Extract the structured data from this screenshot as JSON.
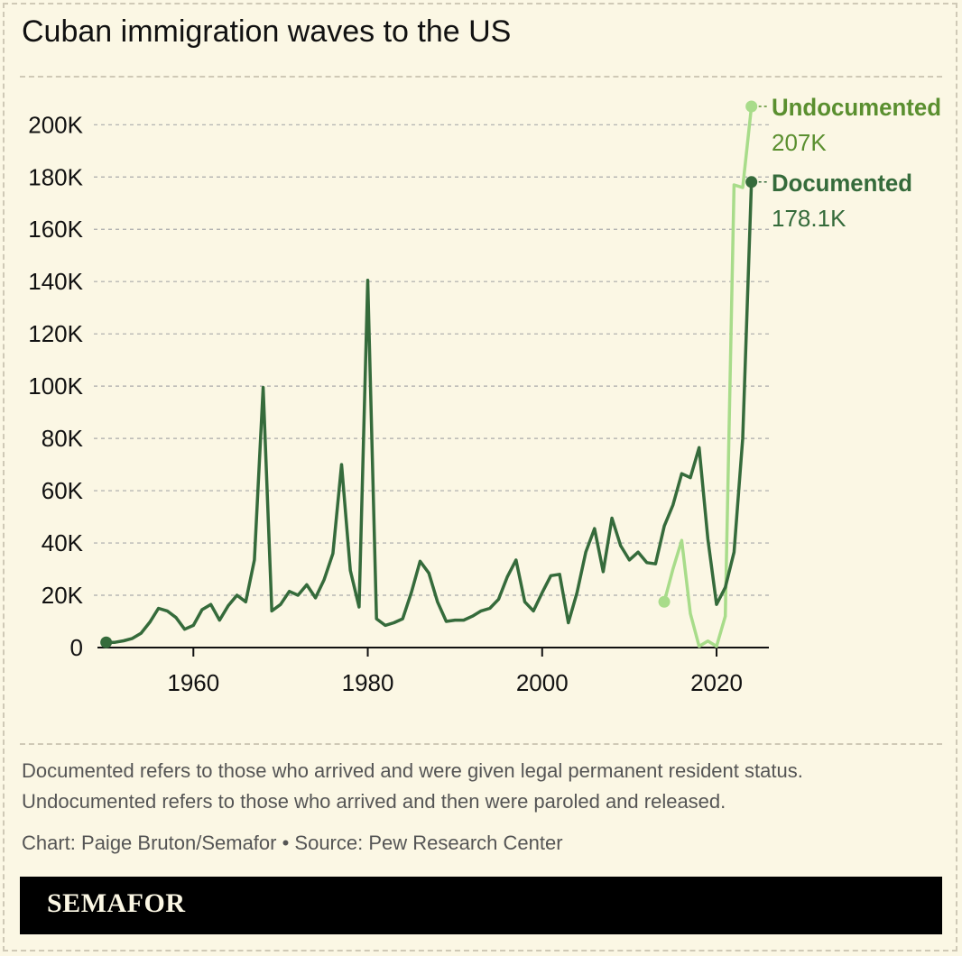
{
  "title": "Cuban immigration waves to the US",
  "notes": {
    "line1": "Documented refers to those who arrived and were given legal permanent resident status.",
    "line2": "Undocumented refers to those who arrived and then were paroled and released.",
    "credit": "Chart: Paige Bruton/Semafor • Source: Pew Research Center"
  },
  "brand": "SEMAFOR",
  "colors": {
    "background": "#fbf7e4",
    "documented": "#356b3b",
    "undocumented": "#a8dc8a",
    "undocumented_label": "#5a8f2f",
    "grid": "#aaaaaa"
  },
  "chart_data": {
    "type": "line",
    "title": "Cuban immigration waves to the US",
    "xlabel": "",
    "ylabel": "",
    "xlim": [
      1949,
      2026
    ],
    "ylim": [
      0,
      207000
    ],
    "x_ticks": [
      1960,
      1980,
      2000,
      2020
    ],
    "x_tick_labels": [
      "1960",
      "1980",
      "2000",
      "2020"
    ],
    "y_ticks": [
      0,
      20000,
      40000,
      60000,
      80000,
      100000,
      120000,
      140000,
      160000,
      180000,
      200000
    ],
    "y_tick_labels": [
      "0",
      "20K",
      "40K",
      "60K",
      "80K",
      "100K",
      "120K",
      "140K",
      "160K",
      "180K",
      "200K"
    ],
    "grid": "horizontal dashed",
    "legend": "direct labels at line ends",
    "series": [
      {
        "name": "Undocumented",
        "end_label": "207K",
        "color": "#a8dc8a",
        "x": [
          2014,
          2015,
          2016,
          2017,
          2018,
          2019,
          2020,
          2021,
          2022,
          2023,
          2024
        ],
        "y": [
          17500,
          30000,
          41000,
          13000,
          500,
          2500,
          500,
          12000,
          177000,
          176000,
          207000
        ]
      },
      {
        "name": "Documented",
        "end_label": "178.1K",
        "color": "#356b3b",
        "x": [
          1950,
          1951,
          1952,
          1953,
          1954,
          1955,
          1956,
          1957,
          1958,
          1959,
          1960,
          1961,
          1962,
          1963,
          1964,
          1965,
          1966,
          1967,
          1968,
          1969,
          1970,
          1971,
          1972,
          1973,
          1974,
          1975,
          1976,
          1977,
          1978,
          1979,
          1980,
          1981,
          1982,
          1983,
          1984,
          1985,
          1986,
          1987,
          1988,
          1989,
          1990,
          1991,
          1992,
          1993,
          1994,
          1995,
          1996,
          1997,
          1998,
          1999,
          2000,
          2001,
          2002,
          2003,
          2004,
          2005,
          2006,
          2007,
          2008,
          2009,
          2010,
          2011,
          2012,
          2013,
          2014,
          2015,
          2016,
          2017,
          2018,
          2019,
          2020,
          2021,
          2022,
          2023,
          2024
        ],
        "y": [
          2000,
          2000,
          2600,
          3500,
          5500,
          9700,
          15000,
          14000,
          11500,
          7000,
          8500,
          14500,
          16500,
          10500,
          16000,
          20000,
          17500,
          33500,
          99500,
          14000,
          16500,
          21500,
          20000,
          24000,
          19000,
          26000,
          36000,
          70000,
          29500,
          15500,
          140500,
          11000,
          8500,
          9500,
          11000,
          21000,
          33000,
          28500,
          17500,
          10000,
          10500,
          10500,
          12000,
          14000,
          15000,
          18500,
          27000,
          33500,
          17500,
          14000,
          21000,
          27500,
          28000,
          9500,
          21000,
          36500,
          45500,
          29000,
          49500,
          39000,
          33500,
          36500,
          32500,
          32000,
          46500,
          54500,
          66500,
          65000,
          76500,
          41500,
          16500,
          23000,
          36500,
          80000,
          178100
        ]
      }
    ]
  }
}
